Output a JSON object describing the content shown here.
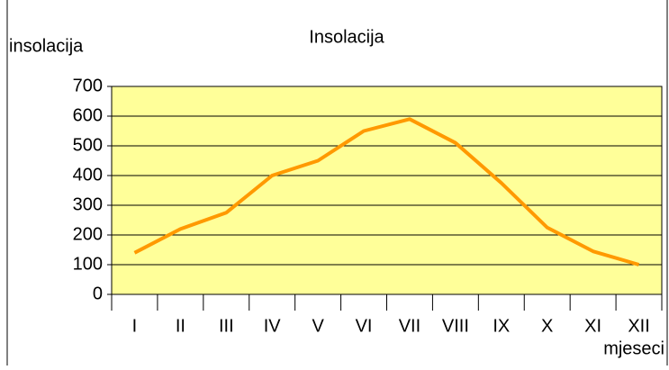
{
  "chart_data": {
    "type": "line",
    "title": "Insolacija",
    "y_label": "insolacija",
    "x_label": "mjeseci",
    "categories": [
      "I",
      "II",
      "III",
      "IV",
      "V",
      "VI",
      "VII",
      "VIII",
      "IX",
      "X",
      "XI",
      "XII"
    ],
    "series": [
      {
        "name": "insolacija",
        "color": "#ff9900",
        "values": [
          140,
          220,
          275,
          400,
          450,
          550,
          590,
          510,
          375,
          225,
          145,
          100
        ]
      }
    ],
    "ylim": [
      0,
      700
    ],
    "yticks": [
      0,
      100,
      200,
      300,
      400,
      500,
      600,
      700
    ],
    "grid": true
  }
}
